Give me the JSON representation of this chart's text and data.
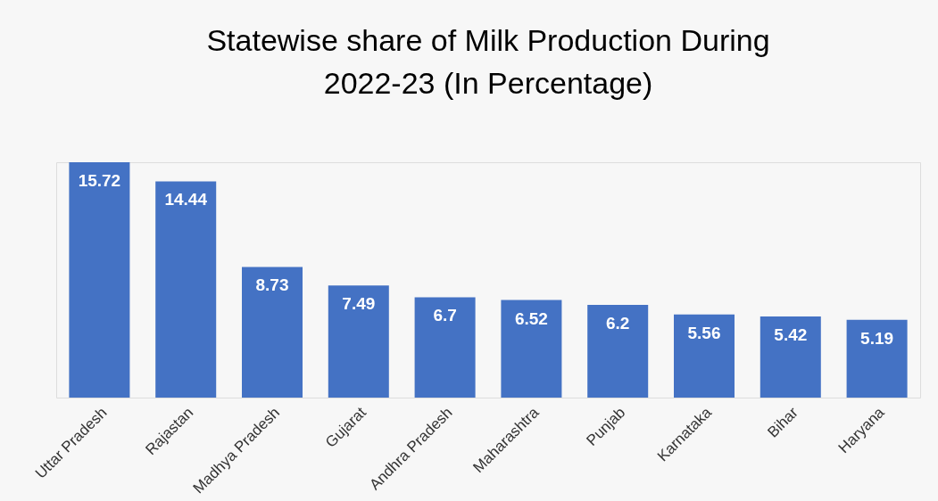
{
  "chart_data": {
    "type": "bar",
    "title": "Statewise share of Milk Production During 2022-23 (In Percentage)",
    "categories": [
      "Uttar Pradesh",
      "Rajastan",
      "Madhya Pradesh",
      "Gujarat",
      "Andhra Pradesh",
      "Maharashtra",
      "Punjab",
      "Karnataka",
      "Bihar",
      "Haryana"
    ],
    "values": [
      15.72,
      14.44,
      8.73,
      7.49,
      6.7,
      6.52,
      6.2,
      5.56,
      5.42,
      5.19
    ],
    "color": "#4472c4",
    "data_labels": true
  }
}
